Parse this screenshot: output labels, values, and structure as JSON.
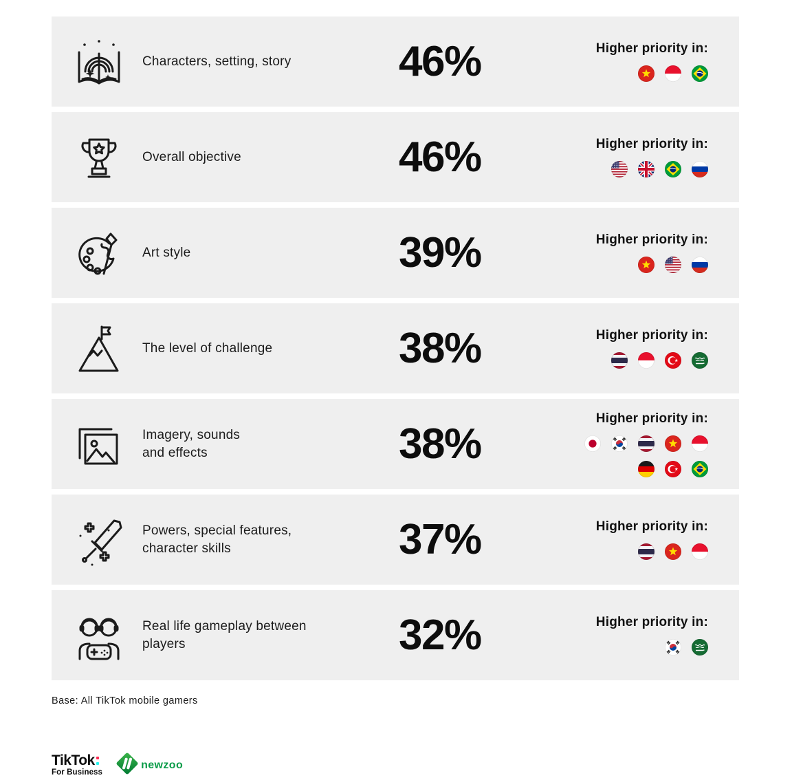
{
  "higher_priority_label": "Higher priority in:",
  "colors": {
    "row_bg": "#efefef",
    "text": "#141414",
    "tiktok_red": "#fe2c55",
    "tiktok_cyan": "#25f4ee",
    "newzoo_green": "#0b9c49"
  },
  "rows": [
    {
      "icon": "storybook-icon",
      "label": "Characters, setting, story",
      "value": "46%",
      "flag_lines": [
        [
          "vietnam",
          "indonesia",
          "brazil"
        ]
      ]
    },
    {
      "icon": "trophy-icon",
      "label": "Overall objective",
      "value": "46%",
      "flag_lines": [
        [
          "usa",
          "uk",
          "brazil",
          "russia"
        ]
      ]
    },
    {
      "icon": "palette-icon",
      "label": "Art style",
      "value": "39%",
      "flag_lines": [
        [
          "vietnam",
          "usa",
          "russia"
        ]
      ]
    },
    {
      "icon": "mountain-flag-icon",
      "label": "The level of challenge",
      "value": "38%",
      "flag_lines": [
        [
          "thailand",
          "indonesia",
          "turkey",
          "saudi-arabia"
        ]
      ]
    },
    {
      "icon": "imagery-icon",
      "label": "Imagery, sounds\nand effects",
      "value": "38%",
      "flag_lines": [
        [
          "japan",
          "south-korea",
          "thailand",
          "vietnam",
          "indonesia"
        ],
        [
          "germany",
          "turkey",
          "brazil"
        ]
      ]
    },
    {
      "icon": "sword-sparkles-icon",
      "label": "Powers, special features,\ncharacter skills",
      "value": "37%",
      "flag_lines": [
        [
          "thailand",
          "vietnam",
          "indonesia"
        ]
      ]
    },
    {
      "icon": "players-gamepad-icon",
      "label": "Real life gameplay between\nplayers",
      "value": "32%",
      "flag_lines": [
        [
          "south-korea",
          "saudi-arabia"
        ]
      ]
    }
  ],
  "chart_data": {
    "type": "bar",
    "title": "Higher priority in:",
    "categories": [
      "Characters, setting, story",
      "Overall objective",
      "Art style",
      "The level of challenge",
      "Imagery, sounds and effects",
      "Powers, special features, character skills",
      "Real life gameplay between players"
    ],
    "values": [
      46,
      46,
      39,
      38,
      38,
      37,
      32
    ],
    "value_labels": [
      "46%",
      "46%",
      "39%",
      "38%",
      "38%",
      "37%",
      "32%"
    ],
    "higher_priority_countries": [
      [
        "Vietnam",
        "Indonesia",
        "Brazil"
      ],
      [
        "USA",
        "UK",
        "Brazil",
        "Russia"
      ],
      [
        "Vietnam",
        "USA",
        "Russia"
      ],
      [
        "Thailand",
        "Indonesia",
        "Turkey",
        "Saudi Arabia"
      ],
      [
        "Japan",
        "South Korea",
        "Thailand",
        "Vietnam",
        "Indonesia",
        "Germany",
        "Turkey",
        "Brazil"
      ],
      [
        "Thailand",
        "Vietnam",
        "Indonesia"
      ],
      [
        "South Korea",
        "Saudi Arabia"
      ]
    ],
    "xlabel": "",
    "ylabel": "",
    "ylim": [
      0,
      100
    ]
  },
  "footer": {
    "base_note": "Base: All TikTok mobile gamers"
  },
  "logos": {
    "tiktok_text": "TikTok",
    "tiktok_subtext": "For Business",
    "newzoo_text": "newzoo"
  }
}
